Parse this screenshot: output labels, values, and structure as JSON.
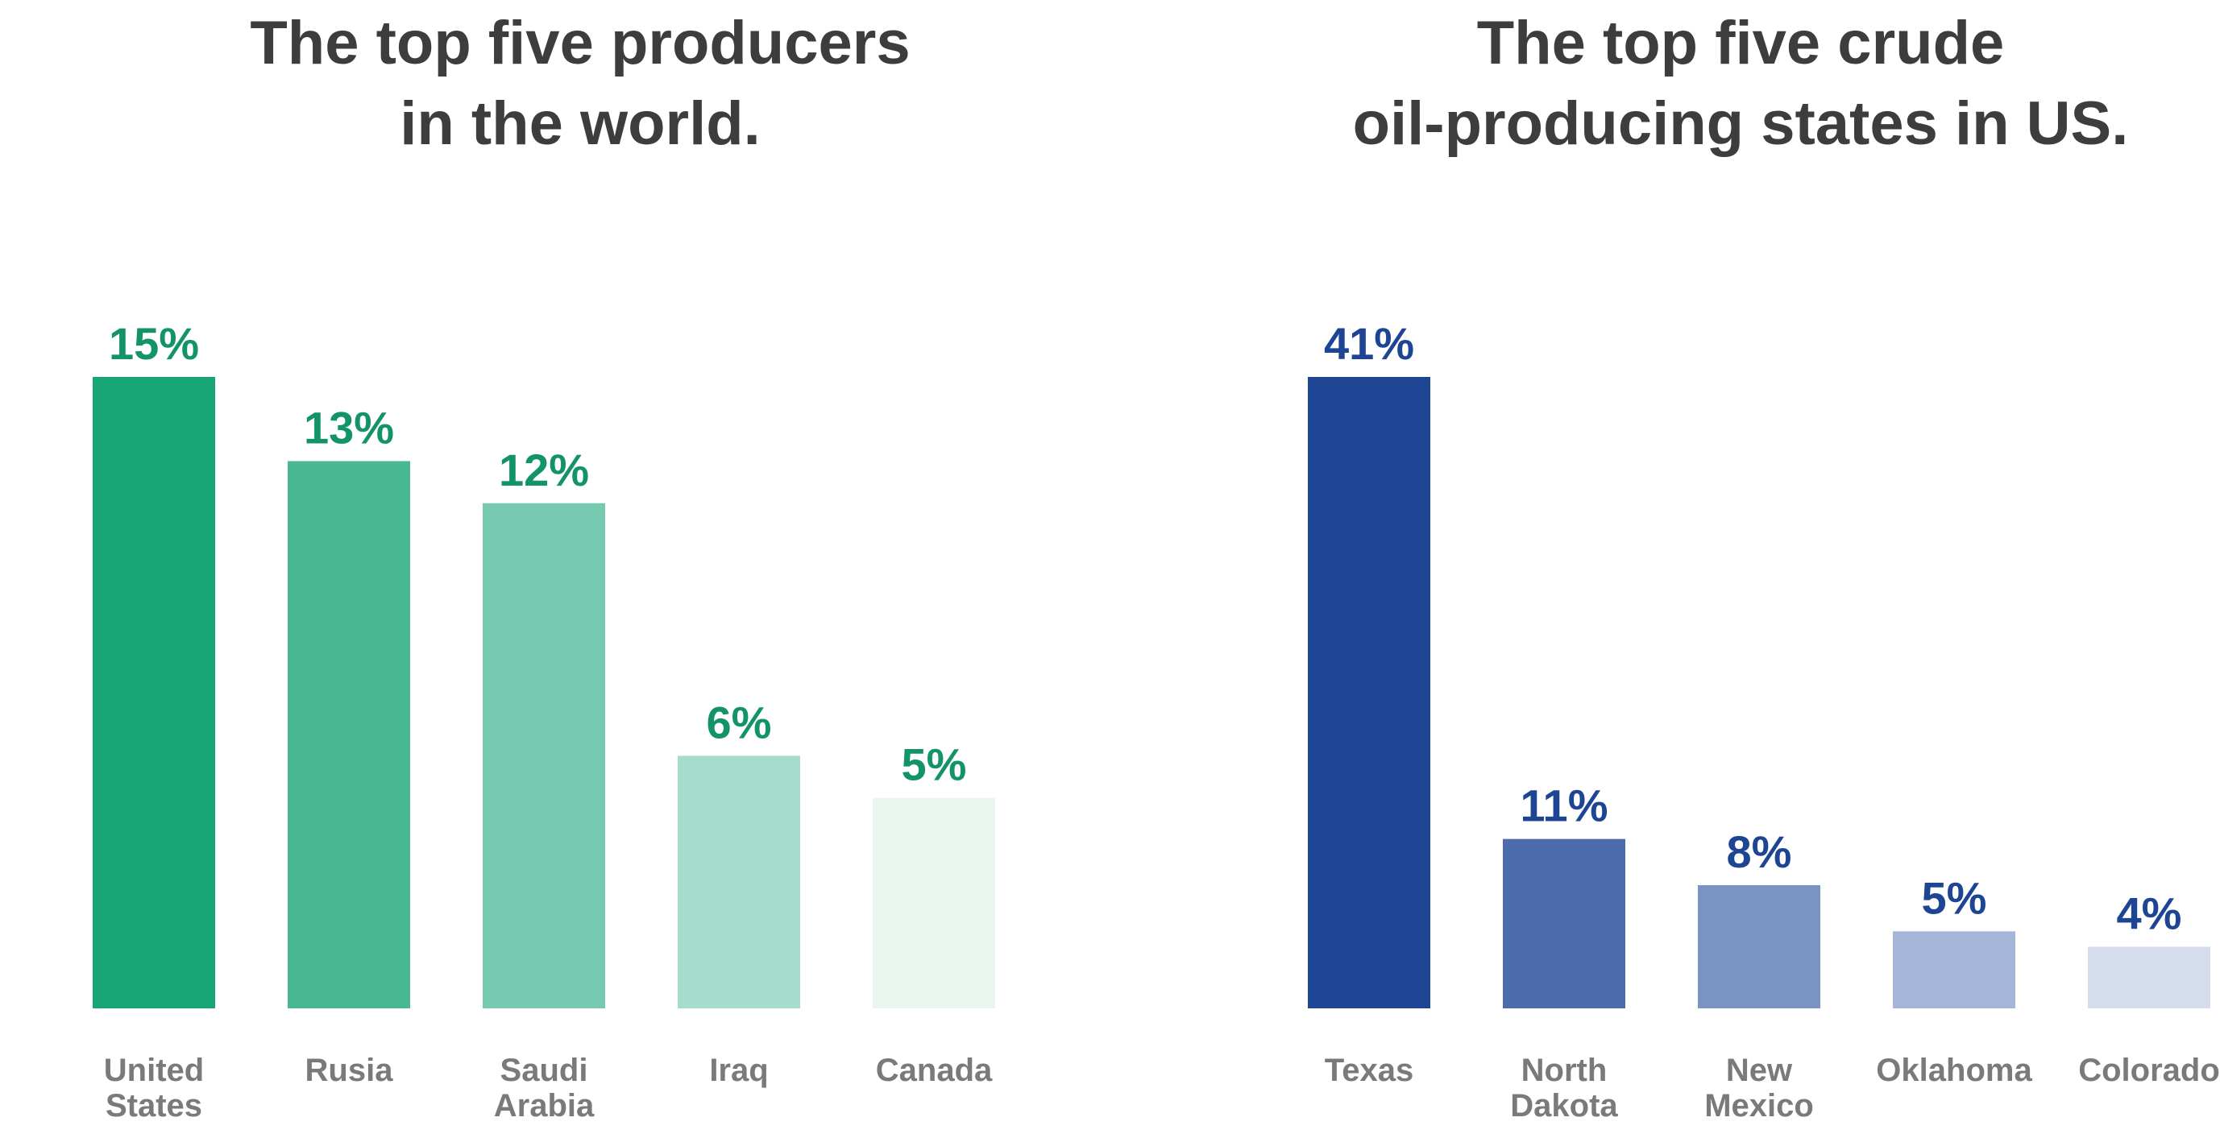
{
  "chart_data": [
    {
      "type": "bar",
      "title": "The top five producers\nin the world.",
      "categories": [
        "United\nStates",
        "Rusia",
        "Saudi\nArabia",
        "Iraq",
        "Canada"
      ],
      "values": [
        15,
        13,
        12,
        6,
        5
      ],
      "value_labels": [
        "15%",
        "13%",
        "12%",
        "6%",
        "5%"
      ],
      "bar_colors": [
        "#18a677",
        "#47b891",
        "#76cab0",
        "#a5ddcc",
        "#eaf5f0"
      ],
      "label_color": "#13936a",
      "unit": "%",
      "xlabel": "",
      "ylabel": "",
      "ylim": [
        0,
        15
      ],
      "grid": false,
      "legend": "none"
    },
    {
      "type": "bar",
      "title": "The top five crude\noil-producing states in US.",
      "categories": [
        "Texas",
        "North\nDakota",
        "New\nMexico",
        "Oklahoma",
        "Colorado"
      ],
      "values": [
        41,
        11,
        8,
        5,
        4
      ],
      "value_labels": [
        "41%",
        "11%",
        "8%",
        "5%",
        "4%"
      ],
      "bar_colors": [
        "#1e4594",
        "#4d6cad",
        "#7a93c3",
        "#a4b5d7",
        "#d5ddec"
      ],
      "label_color": "#1e4594",
      "unit": "%",
      "xlabel": "",
      "ylabel": "",
      "ylim": [
        0,
        41
      ],
      "grid": false,
      "legend": "none"
    }
  ]
}
